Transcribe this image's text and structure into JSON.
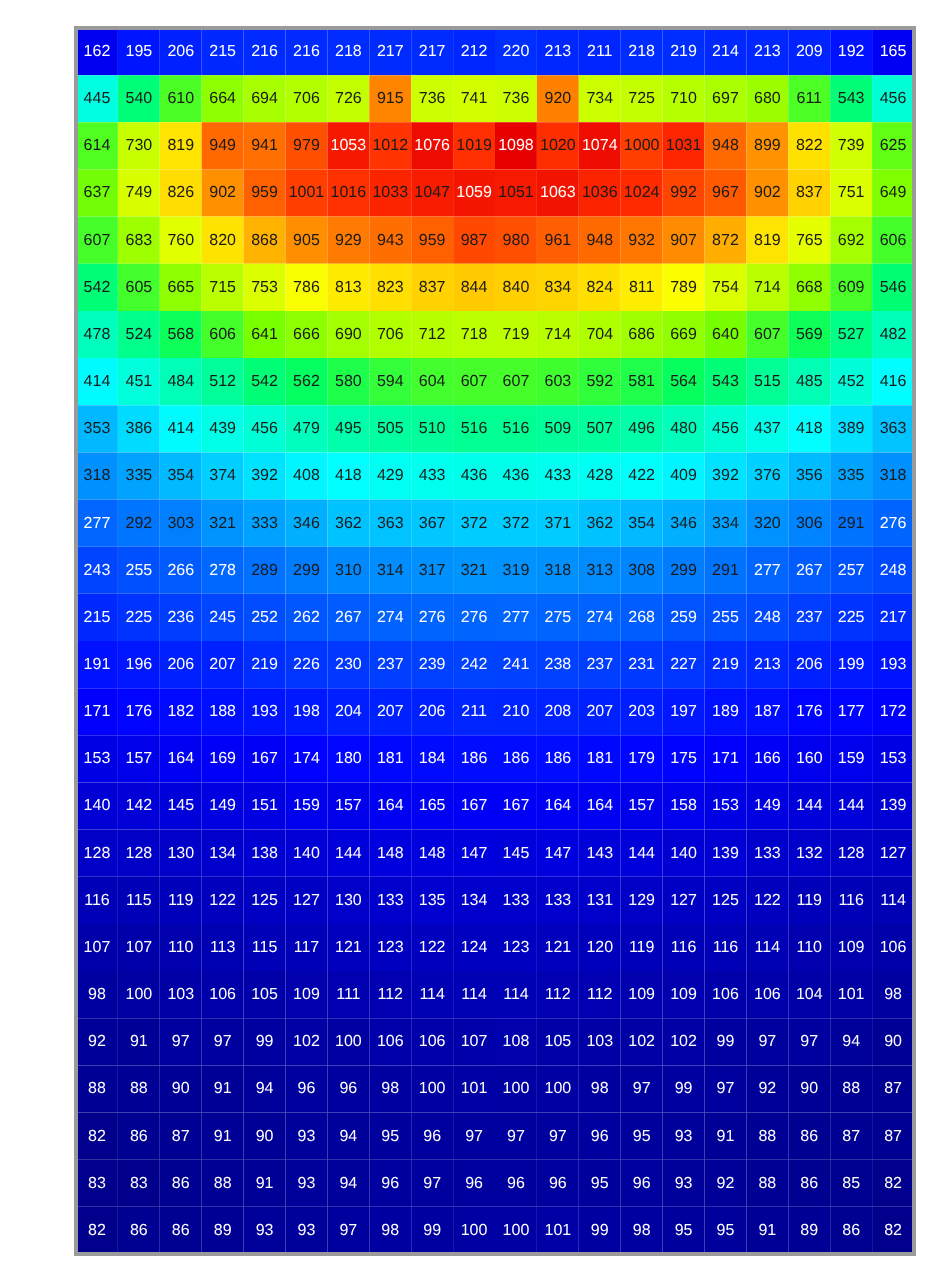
{
  "chart_data": {
    "type": "heatmap",
    "data_labels": true,
    "categories": [
      null,
      null,
      null,
      null,
      null,
      null,
      null,
      null,
      null,
      null,
      null,
      null,
      null,
      null,
      null,
      null,
      null,
      null,
      null,
      null
    ],
    "y_categories": [
      null,
      null,
      null,
      null,
      null,
      null,
      null,
      null,
      null,
      null,
      null,
      null,
      null,
      null,
      null,
      null,
      null,
      null,
      null,
      null,
      null,
      null,
      null,
      null,
      null,
      null
    ],
    "cells": [
      [
        162,
        195,
        206,
        215,
        216,
        216,
        218,
        217,
        217,
        212,
        220,
        213,
        211,
        218,
        219,
        214,
        213,
        209,
        192,
        165
      ],
      [
        445,
        540,
        610,
        664,
        694,
        706,
        726,
        915,
        736,
        741,
        736,
        920,
        734,
        725,
        710,
        697,
        680,
        611,
        543,
        456
      ],
      [
        614,
        730,
        819,
        949,
        941,
        979,
        1053,
        1012,
        1076,
        1019,
        1098,
        1020,
        1074,
        1000,
        1031,
        948,
        899,
        822,
        739,
        625
      ],
      [
        637,
        749,
        826,
        902,
        959,
        1001,
        1016,
        1033,
        1047,
        1059,
        1051,
        1063,
        1036,
        1024,
        992,
        967,
        902,
        837,
        751,
        649
      ],
      [
        607,
        683,
        760,
        820,
        868,
        905,
        929,
        943,
        959,
        987,
        980,
        961,
        948,
        932,
        907,
        872,
        819,
        765,
        692,
        606
      ],
      [
        542,
        605,
        665,
        715,
        753,
        786,
        813,
        823,
        837,
        844,
        840,
        834,
        824,
        811,
        789,
        754,
        714,
        668,
        609,
        546
      ],
      [
        478,
        524,
        568,
        606,
        641,
        666,
        690,
        706,
        712,
        718,
        719,
        714,
        704,
        686,
        669,
        640,
        607,
        569,
        527,
        482
      ],
      [
        414,
        451,
        484,
        512,
        542,
        562,
        580,
        594,
        604,
        607,
        607,
        603,
        592,
        581,
        564,
        543,
        515,
        485,
        452,
        416
      ],
      [
        353,
        386,
        414,
        439,
        456,
        479,
        495,
        505,
        510,
        516,
        516,
        509,
        507,
        496,
        480,
        456,
        437,
        418,
        389,
        363
      ],
      [
        318,
        335,
        354,
        374,
        392,
        408,
        418,
        429,
        433,
        436,
        436,
        433,
        428,
        422,
        409,
        392,
        376,
        356,
        335,
        318
      ],
      [
        277,
        292,
        303,
        321,
        333,
        346,
        362,
        363,
        367,
        372,
        372,
        371,
        362,
        354,
        346,
        334,
        320,
        306,
        291,
        276
      ],
      [
        243,
        255,
        266,
        278,
        289,
        299,
        310,
        314,
        317,
        321,
        319,
        318,
        313,
        308,
        299,
        291,
        277,
        267,
        257,
        248
      ],
      [
        215,
        225,
        236,
        245,
        252,
        262,
        267,
        274,
        276,
        276,
        277,
        275,
        274,
        268,
        259,
        255,
        248,
        237,
        225,
        217
      ],
      [
        191,
        196,
        206,
        207,
        219,
        226,
        230,
        237,
        239,
        242,
        241,
        238,
        237,
        231,
        227,
        219,
        213,
        206,
        199,
        193
      ],
      [
        171,
        176,
        182,
        188,
        193,
        198,
        204,
        207,
        206,
        211,
        210,
        208,
        207,
        203,
        197,
        189,
        187,
        176,
        177,
        172
      ],
      [
        153,
        157,
        164,
        169,
        167,
        174,
        180,
        181,
        184,
        186,
        186,
        186,
        181,
        179,
        175,
        171,
        166,
        160,
        159,
        153
      ],
      [
        140,
        142,
        145,
        149,
        151,
        159,
        157,
        164,
        165,
        167,
        167,
        164,
        164,
        157,
        158,
        153,
        149,
        144,
        144,
        139
      ],
      [
        128,
        128,
        130,
        134,
        138,
        140,
        144,
        148,
        148,
        147,
        145,
        147,
        143,
        144,
        140,
        139,
        133,
        132,
        128,
        127
      ],
      [
        116,
        115,
        119,
        122,
        125,
        127,
        130,
        133,
        135,
        134,
        133,
        133,
        131,
        129,
        127,
        125,
        122,
        119,
        116,
        114
      ],
      [
        107,
        107,
        110,
        113,
        115,
        117,
        121,
        123,
        122,
        124,
        123,
        121,
        120,
        119,
        116,
        116,
        114,
        110,
        109,
        106
      ],
      [
        98,
        100,
        103,
        106,
        105,
        109,
        111,
        112,
        114,
        114,
        114,
        112,
        112,
        109,
        109,
        106,
        106,
        104,
        101,
        98
      ],
      [
        92,
        91,
        97,
        97,
        99,
        102,
        100,
        106,
        106,
        107,
        108,
        105,
        103,
        102,
        102,
        99,
        97,
        97,
        94,
        90
      ],
      [
        88,
        88,
        90,
        91,
        94,
        96,
        96,
        98,
        100,
        101,
        100,
        100,
        98,
        97,
        99,
        97,
        92,
        90,
        88,
        87
      ],
      [
        82,
        86,
        87,
        91,
        90,
        93,
        94,
        95,
        96,
        97,
        97,
        97,
        96,
        95,
        93,
        91,
        88,
        86,
        87,
        87
      ],
      [
        83,
        83,
        86,
        88,
        91,
        93,
        94,
        96,
        97,
        96,
        96,
        96,
        95,
        96,
        93,
        92,
        88,
        86,
        85,
        82
      ],
      [
        82,
        86,
        86,
        89,
        93,
        93,
        97,
        98,
        99,
        100,
        100,
        101,
        99,
        98,
        95,
        95,
        91,
        89,
        86,
        82
      ]
    ]
  }
}
